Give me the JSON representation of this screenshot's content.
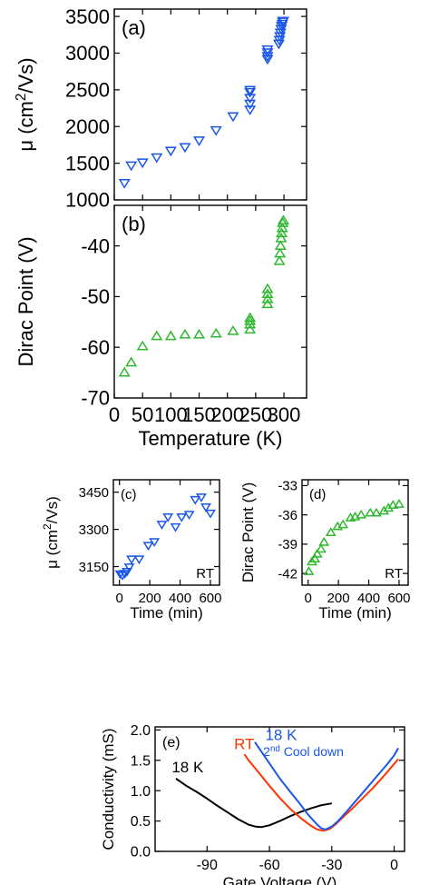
{
  "colors": {
    "blue": "#1a56e8",
    "green": "#2fb82f",
    "red": "#ff3300",
    "black": "#000000"
  },
  "chart_data": [
    {
      "id": "a",
      "type": "scatter",
      "panel_label": "(a)",
      "ylabel": "μ (cm²/Vs)",
      "ylabel_main": "μ (cm",
      "ylabel_sup": "2",
      "ylabel_tail": "/Vs)",
      "xlim": [
        0,
        340
      ],
      "ylim": [
        1000,
        3600
      ],
      "xticks": [
        0,
        50,
        100,
        150,
        200,
        250,
        300
      ],
      "yticks": [
        1000,
        1500,
        2000,
        2500,
        3000,
        3500
      ],
      "ytick_labels": [
        "1000",
        "1500",
        "2000",
        "2500",
        "3000",
        "3500"
      ],
      "marker": "triangle-down",
      "series": [
        {
          "color": "blue",
          "points": [
            [
              18,
              1230
            ],
            [
              30,
              1470
            ],
            [
              50,
              1510
            ],
            [
              75,
              1580
            ],
            [
              100,
              1670
            ],
            [
              125,
              1720
            ],
            [
              150,
              1810
            ],
            [
              180,
              1950
            ],
            [
              210,
              2140
            ],
            [
              240,
              2230
            ],
            [
              240,
              2310
            ],
            [
              240,
              2390
            ],
            [
              240,
              2470
            ],
            [
              240,
              2500
            ],
            [
              271,
              2920
            ],
            [
              271,
              2960
            ],
            [
              271,
              3010
            ],
            [
              271,
              3050
            ],
            [
              291,
              3130
            ],
            [
              292,
              3180
            ],
            [
              293,
              3230
            ],
            [
              294,
              3280
            ],
            [
              295,
              3330
            ],
            [
              296,
              3370
            ],
            [
              297,
              3400
            ],
            [
              298,
              3430
            ],
            [
              299,
              3440
            ]
          ]
        }
      ]
    },
    {
      "id": "b",
      "type": "scatter",
      "panel_label": "(b)",
      "ylabel": "Dirac Point (V)",
      "xlabel": "Temperature (K)",
      "xlim": [
        0,
        340
      ],
      "ylim": [
        -70,
        -32
      ],
      "xticks": [
        0,
        50,
        100,
        150,
        200,
        250,
        300
      ],
      "xtick_labels": [
        "0",
        "50",
        "100",
        "150",
        "200",
        "250",
        "300"
      ],
      "yticks": [
        -70,
        -60,
        -50,
        -40
      ],
      "ytick_labels": [
        "-70",
        "-60",
        "-50",
        "-40"
      ],
      "marker": "triangle-up",
      "series": [
        {
          "color": "green",
          "points": [
            [
              18,
              -65.0
            ],
            [
              30,
              -63.0
            ],
            [
              50,
              -59.8
            ],
            [
              75,
              -57.8
            ],
            [
              100,
              -57.8
            ],
            [
              125,
              -57.5
            ],
            [
              150,
              -57.5
            ],
            [
              180,
              -57.3
            ],
            [
              210,
              -56.8
            ],
            [
              240,
              -56.5
            ],
            [
              240,
              -55.5
            ],
            [
              240,
              -54.8
            ],
            [
              240,
              -54.2
            ],
            [
              271,
              -51.5
            ],
            [
              271,
              -50.5
            ],
            [
              271,
              -49.5
            ],
            [
              271,
              -48.5
            ],
            [
              292,
              -43.0
            ],
            [
              293,
              -41.5
            ],
            [
              294,
              -40.0
            ],
            [
              295,
              -38.5
            ],
            [
              296,
              -37.5
            ],
            [
              297,
              -36.5
            ],
            [
              298,
              -35.5
            ],
            [
              299,
              -35.0
            ]
          ]
        }
      ]
    },
    {
      "id": "c",
      "type": "scatter",
      "panel_label": "(c)",
      "annotation": "RT",
      "ylabel": "μ (cm²/Vs)",
      "ylabel_main": "μ (cm",
      "ylabel_sup": "2",
      "ylabel_tail": "/Vs)",
      "xlabel": "Time (min)",
      "xlim": [
        -40,
        660
      ],
      "ylim": [
        3075,
        3500
      ],
      "xticks": [
        0,
        200,
        400,
        600
      ],
      "xtick_labels": [
        "0",
        "200",
        "400",
        "600"
      ],
      "yticks": [
        3150,
        3300,
        3450
      ],
      "ytick_labels": [
        "3150",
        "3300",
        "3450"
      ],
      "marker": "triangle-down",
      "series": [
        {
          "color": "blue",
          "points": [
            [
              5,
              3120
            ],
            [
              20,
              3115
            ],
            [
              35,
              3122
            ],
            [
              50,
              3130
            ],
            [
              65,
              3148
            ],
            [
              80,
              3180
            ],
            [
              130,
              3180
            ],
            [
              190,
              3235
            ],
            [
              230,
              3250
            ],
            [
              280,
              3320
            ],
            [
              320,
              3350
            ],
            [
              370,
              3310
            ],
            [
              410,
              3350
            ],
            [
              460,
              3360
            ],
            [
              500,
              3420
            ],
            [
              540,
              3430
            ],
            [
              570,
              3390
            ],
            [
              600,
              3365
            ]
          ]
        }
      ]
    },
    {
      "id": "d",
      "type": "scatter",
      "panel_label": "(d)",
      "annotation": "RT",
      "ylabel": "Dirac Point (V)",
      "xlabel": "Time (min)",
      "xlim": [
        -40,
        660
      ],
      "ylim": [
        -43.2,
        -32.4
      ],
      "xticks": [
        0,
        200,
        400,
        600
      ],
      "xtick_labels": [
        "0",
        "200",
        "400",
        "600"
      ],
      "yticks": [
        -42,
        -39,
        -36,
        -33
      ],
      "ytick_labels": [
        "-42",
        "-39",
        "-36",
        "-33"
      ],
      "marker": "triangle-up",
      "series": [
        {
          "color": "green",
          "points": [
            [
              5,
              -41.8
            ],
            [
              25,
              -40.8
            ],
            [
              45,
              -40.5
            ],
            [
              60,
              -40.0
            ],
            [
              85,
              -39.5
            ],
            [
              105,
              -38.8
            ],
            [
              150,
              -37.8
            ],
            [
              195,
              -37.2
            ],
            [
              230,
              -37.0
            ],
            [
              280,
              -36.3
            ],
            [
              310,
              -36.2
            ],
            [
              350,
              -36.0
            ],
            [
              410,
              -35.8
            ],
            [
              450,
              -35.8
            ],
            [
              500,
              -35.6
            ],
            [
              530,
              -35.3
            ],
            [
              560,
              -35.0
            ],
            [
              600,
              -34.9
            ]
          ]
        }
      ]
    },
    {
      "id": "e",
      "type": "line",
      "panel_label": "(e)",
      "ylabel": "Conductivity (mS)",
      "xlabel": "Gate Voltage (V)",
      "xlim": [
        -115,
        5
      ],
      "ylim": [
        0,
        2.05
      ],
      "xticks": [
        -90,
        -60,
        -30,
        0
      ],
      "xtick_labels": [
        "-90",
        "-60",
        "-30",
        "0"
      ],
      "yticks": [
        0,
        0.5,
        1.0,
        1.5,
        2.0
      ],
      "ytick_labels": [
        "0.0",
        "0.5",
        "1.0",
        "1.5",
        "2.0"
      ],
      "labels": [
        {
          "text": "18 K",
          "color": "black",
          "x": -107,
          "y": 1.3
        },
        {
          "text": "RT",
          "color": "red",
          "x": -77,
          "y": 1.68
        },
        {
          "text": "18 K",
          "color": "blue",
          "x": -62,
          "y": 1.83
        },
        {
          "text": "2",
          "sup": "nd",
          "tail": " Cool down",
          "color": "blue",
          "x": -63,
          "y": 1.57
        }
      ],
      "series": [
        {
          "color": "black",
          "points": [
            [
              -105,
              1.2
            ],
            [
              -100,
              1.08
            ],
            [
              -95,
              0.98
            ],
            [
              -90,
              0.87
            ],
            [
              -85,
              0.75
            ],
            [
              -80,
              0.64
            ],
            [
              -75,
              0.53
            ],
            [
              -70,
              0.44
            ],
            [
              -67,
              0.41
            ],
            [
              -64,
              0.4
            ],
            [
              -60,
              0.43
            ],
            [
              -55,
              0.5
            ],
            [
              -50,
              0.58
            ],
            [
              -45,
              0.65
            ],
            [
              -40,
              0.71
            ],
            [
              -35,
              0.76
            ],
            [
              -30,
              0.79
            ]
          ]
        },
        {
          "color": "red",
          "points": [
            [
              -72,
              1.6
            ],
            [
              -70,
              1.5
            ],
            [
              -65,
              1.29
            ],
            [
              -60,
              1.08
            ],
            [
              -55,
              0.88
            ],
            [
              -50,
              0.7
            ],
            [
              -45,
              0.55
            ],
            [
              -40,
              0.42
            ],
            [
              -37,
              0.36
            ],
            [
              -34,
              0.34
            ],
            [
              -31,
              0.37
            ],
            [
              -28,
              0.45
            ],
            [
              -25,
              0.55
            ],
            [
              -20,
              0.71
            ],
            [
              -15,
              0.88
            ],
            [
              -10,
              1.05
            ],
            [
              -5,
              1.24
            ],
            [
              0,
              1.44
            ],
            [
              2,
              1.52
            ]
          ]
        },
        {
          "color": "blue",
          "points": [
            [
              -67,
              1.8
            ],
            [
              -65,
              1.7
            ],
            [
              -60,
              1.45
            ],
            [
              -55,
              1.2
            ],
            [
              -50,
              0.98
            ],
            [
              -45,
              0.77
            ],
            [
              -42,
              0.63
            ],
            [
              -40,
              0.55
            ],
            [
              -37,
              0.44
            ],
            [
              -35,
              0.38
            ],
            [
              -33,
              0.36
            ],
            [
              -30,
              0.41
            ],
            [
              -27,
              0.5
            ],
            [
              -23,
              0.65
            ],
            [
              -18,
              0.85
            ],
            [
              -13,
              1.05
            ],
            [
              -8,
              1.25
            ],
            [
              -3,
              1.45
            ],
            [
              0,
              1.58
            ],
            [
              2,
              1.7
            ]
          ]
        }
      ]
    }
  ]
}
